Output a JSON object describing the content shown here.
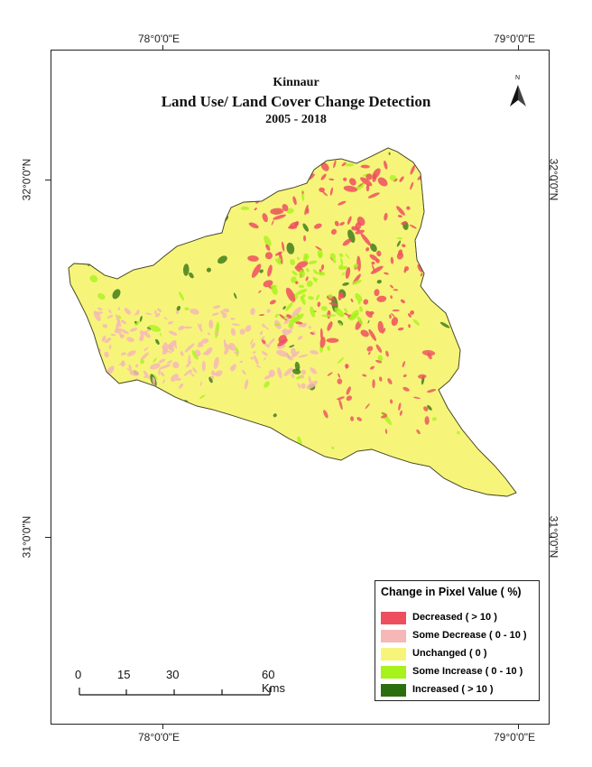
{
  "map": {
    "title_line1": "Kinnaur",
    "title_line2": "Land Use/ Land Cover Change Detection",
    "title_line3": "2005 - 2018",
    "north_label": "N",
    "lon_labels": [
      "78°0'0\"E",
      "79°0'0\"E"
    ],
    "lat_labels": [
      "32°0'0\"N",
      "31°0'0\"N"
    ],
    "colors": {
      "decreased": "#ee4f5f",
      "some_decrease": "#f6b7b7",
      "unchanged": "#f6f57a",
      "some_increase": "#a6f21a",
      "increased": "#2b6e10"
    }
  },
  "legend": {
    "title": "Change in Pixel Value ( %)",
    "items": [
      {
        "label": "Decreased ( > 10 )",
        "color": "#ee4f5f"
      },
      {
        "label": "Some Decrease ( 0 - 10 )",
        "color": "#f6b7b7"
      },
      {
        "label": "Unchanged ( 0 )",
        "color": "#f6f57a"
      },
      {
        "label": "Some Increase ( 0 - 10 )",
        "color": "#a6f21a"
      },
      {
        "label": "Increased ( > 10 )",
        "color": "#2b6e10"
      }
    ]
  },
  "scalebar": {
    "labels": [
      "0",
      "15",
      "30",
      "60 Kms"
    ]
  }
}
